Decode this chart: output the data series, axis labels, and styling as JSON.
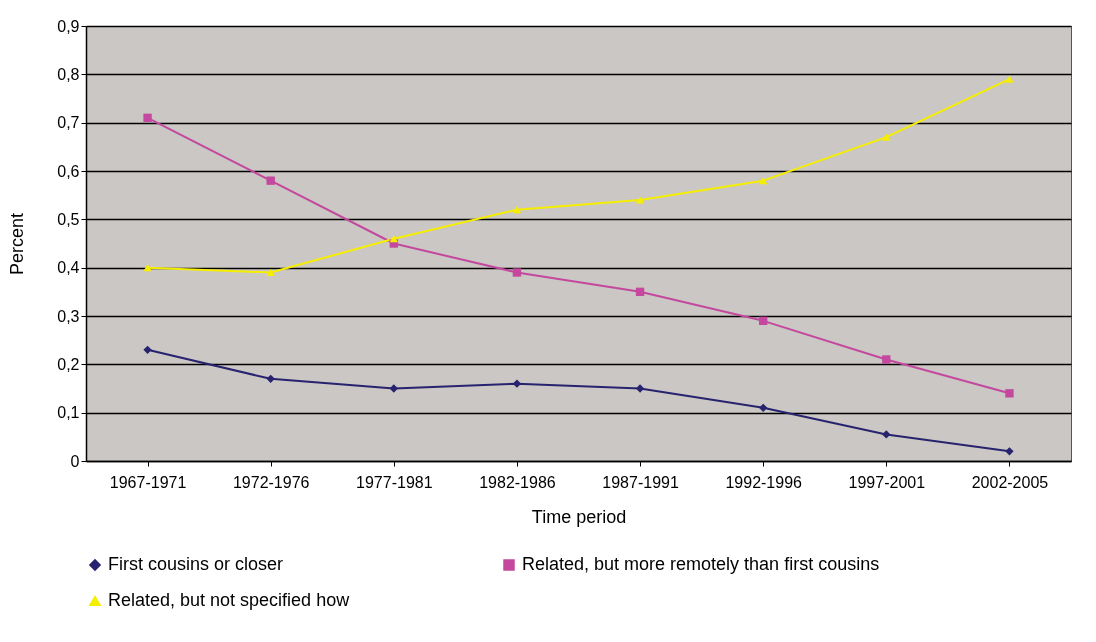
{
  "chart_data": {
    "type": "line",
    "xlabel": "Time period",
    "ylabel": "Percent",
    "categories": [
      "1967-1971",
      "1972-1976",
      "1977-1981",
      "1982-1986",
      "1987-1991",
      "1992-1996",
      "1997-2001",
      "2002-2005"
    ],
    "series": [
      {
        "name": "First cousins or closer",
        "color": "#27236e",
        "marker": "diamond",
        "values": [
          0.23,
          0.17,
          0.15,
          0.16,
          0.15,
          0.11,
          0.055,
          0.02
        ]
      },
      {
        "name": "Related, but more remotely than first cousins",
        "color": "#c4489e",
        "marker": "square",
        "values": [
          0.71,
          0.58,
          0.45,
          0.39,
          0.35,
          0.29,
          0.21,
          0.14
        ]
      },
      {
        "name": "Related, but not specified how",
        "color": "#f5ee00",
        "marker": "triangle",
        "values": [
          0.4,
          0.39,
          0.46,
          0.52,
          0.54,
          0.58,
          0.67,
          0.79
        ]
      }
    ],
    "ylim": [
      0,
      0.9
    ],
    "yticks": [
      0,
      {
        "value": 0.1,
        "label": "0,1"
      },
      {
        "value": 0.2,
        "label": "0,2"
      },
      {
        "value": 0.3,
        "label": "0,3"
      },
      {
        "value": 0.4,
        "label": "0,4"
      },
      {
        "value": 0.5,
        "label": "0,5"
      },
      {
        "value": 0.6,
        "label": "0,6"
      },
      {
        "value": 0.7,
        "label": "0,7"
      },
      {
        "value": 0.8,
        "label": "0,8"
      },
      {
        "value": 0.9,
        "label": "0,9"
      }
    ],
    "grid": "y",
    "legend": "bottom",
    "line_style": "solid"
  }
}
